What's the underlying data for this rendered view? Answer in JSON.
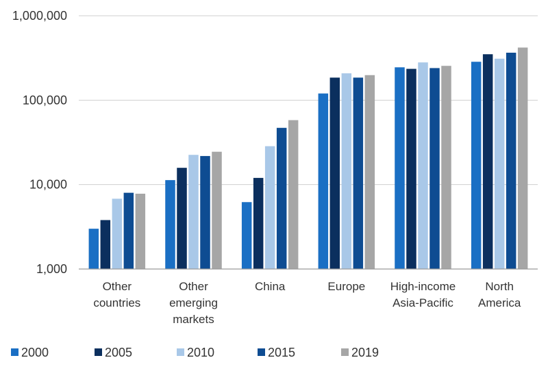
{
  "chart_data": {
    "type": "bar",
    "title": "",
    "xlabel": "",
    "ylabel": "",
    "scale": "log",
    "ylim": [
      1000,
      1000000
    ],
    "grid": true,
    "legend_position": "bottom-left",
    "yticks": [
      {
        "value": 1000,
        "label": "1,000"
      },
      {
        "value": 10000,
        "label": "10,000"
      },
      {
        "value": 100000,
        "label": "100,000"
      },
      {
        "value": 1000000,
        "label": "1,000,000"
      }
    ],
    "categories": [
      {
        "lines": [
          "Other",
          "countries"
        ]
      },
      {
        "lines": [
          "Other",
          "emerging",
          "markets"
        ]
      },
      {
        "lines": [
          "China"
        ]
      },
      {
        "lines": [
          "Europe"
        ]
      },
      {
        "lines": [
          "High-income",
          "Asia-Pacific"
        ]
      },
      {
        "lines": [
          "North",
          "America"
        ]
      }
    ],
    "series": [
      {
        "name": "2000",
        "color": "#1a6fc4",
        "values": [
          3000,
          11300,
          6200,
          120000,
          245000,
          285000
        ]
      },
      {
        "name": "2005",
        "color": "#0b2f5e",
        "values": [
          3800,
          15800,
          12000,
          185000,
          235000,
          350000
        ]
      },
      {
        "name": "2010",
        "color": "#a9c8e8",
        "values": [
          6800,
          22500,
          28500,
          208000,
          280000,
          310000
        ]
      },
      {
        "name": "2015",
        "color": "#0e4c92",
        "values": [
          8000,
          21800,
          47000,
          185000,
          240000,
          365000
        ]
      },
      {
        "name": "2019",
        "color": "#a6a6a6",
        "values": [
          7800,
          24500,
          58000,
          198000,
          255000,
          420000
        ]
      }
    ]
  }
}
